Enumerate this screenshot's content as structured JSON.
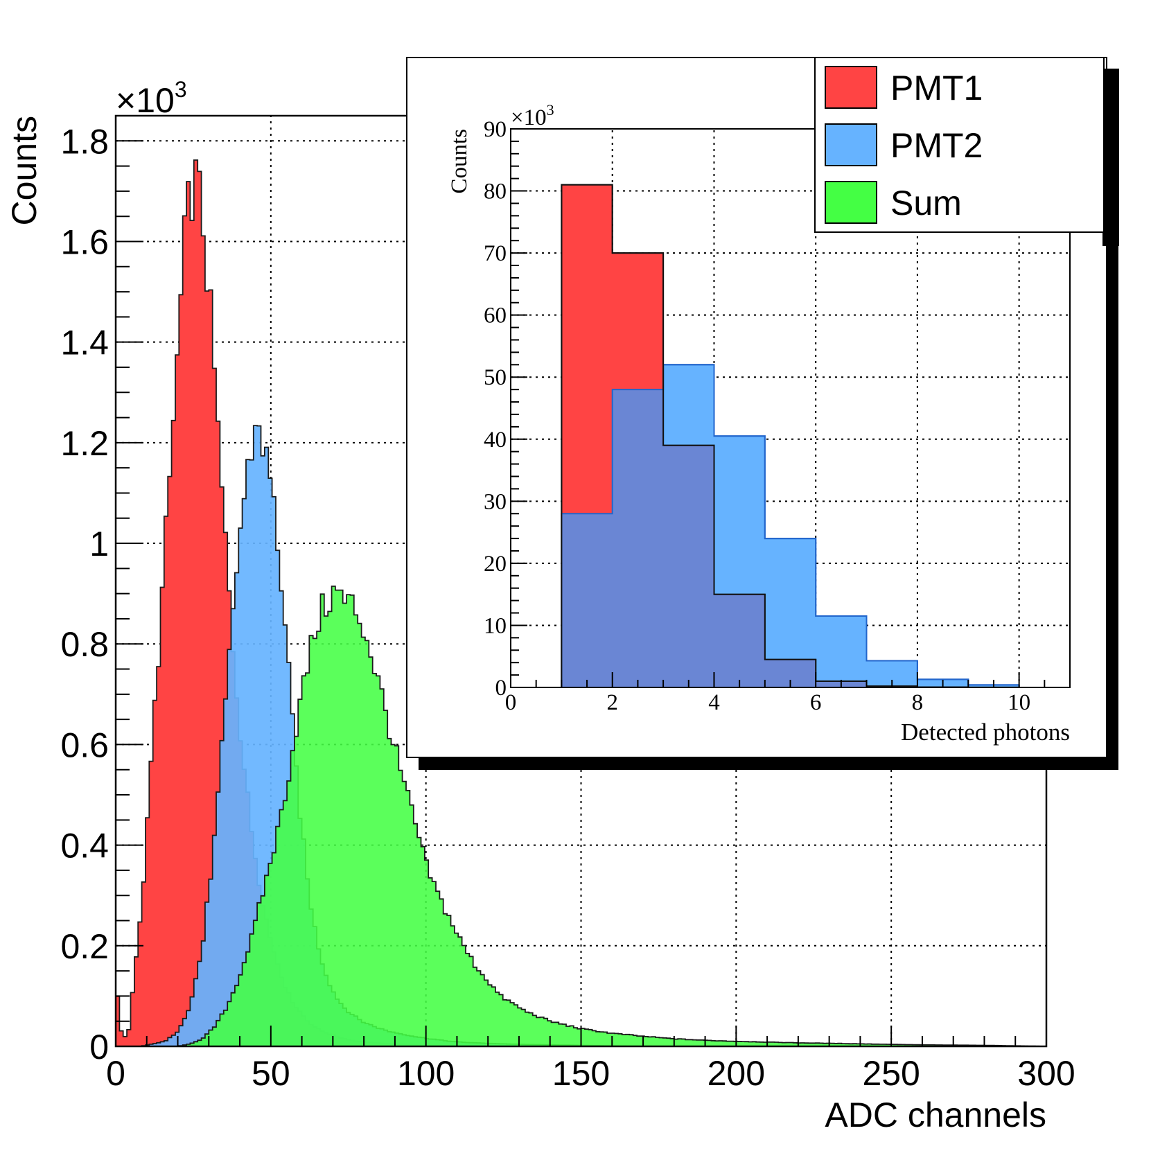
{
  "colors": {
    "pmt1": "#ff4444",
    "pmt2": "#66b3ff",
    "overlap": "#6a86d4",
    "sum": "#44ff44",
    "sum_overlap": "#1de63a"
  },
  "chart_data": [
    {
      "type": "histogram",
      "name": "main",
      "xlabel": "ADC channels",
      "ylabel": "Counts",
      "y_multiplier": "×10",
      "y_multiplier_exp": "3",
      "xlim": [
        0,
        300
      ],
      "ylim": [
        0,
        1.85
      ],
      "xticks": [
        "0",
        "50",
        "100",
        "150",
        "200",
        "250",
        "300"
      ],
      "yticks": [
        "0",
        "0.2",
        "0.4",
        "0.6",
        "0.8",
        "1",
        "1.2",
        "1.4",
        "1.6",
        "1.8"
      ],
      "grid": true,
      "series": [
        {
          "name": "PMT1",
          "color": "#ff4444",
          "x": [
            0,
            2,
            4,
            6,
            8,
            10,
            12,
            14,
            16,
            18,
            20,
            22,
            24,
            26,
            28,
            30,
            32,
            34,
            36,
            38,
            40,
            42,
            44,
            46,
            48,
            50,
            52,
            54,
            56,
            58,
            60,
            62,
            64,
            66,
            68,
            70,
            72,
            74,
            76,
            78,
            80,
            84,
            88,
            92,
            96,
            100,
            104,
            108,
            112,
            116,
            120,
            130,
            140,
            150
          ],
          "values": [
            0.13,
            0.02,
            0.02,
            0.15,
            0.25,
            0.42,
            0.62,
            0.8,
            1.0,
            1.18,
            1.38,
            1.58,
            1.7,
            1.72,
            1.65,
            1.5,
            1.32,
            1.12,
            0.95,
            0.78,
            0.64,
            0.52,
            0.42,
            0.34,
            0.27,
            0.21,
            0.17,
            0.13,
            0.1,
            0.08,
            0.065,
            0.05,
            0.04,
            0.032,
            0.027,
            0.022,
            0.018,
            0.015,
            0.012,
            0.01,
            0.009,
            0.007,
            0.005,
            0.004,
            0.003,
            0.002,
            0.002,
            0.001,
            0.001,
            0.001,
            0.0,
            0.0,
            0.0,
            0.0
          ]
        },
        {
          "name": "PMT2",
          "color": "#66b3ff",
          "x": [
            0,
            8,
            12,
            16,
            20,
            24,
            28,
            32,
            36,
            38,
            40,
            42,
            44,
            46,
            48,
            50,
            52,
            54,
            56,
            58,
            60,
            62,
            64,
            66,
            68,
            70,
            72,
            74,
            76,
            78,
            80,
            84,
            88,
            92,
            96,
            100,
            104,
            108,
            112,
            120,
            130,
            140,
            150,
            160,
            180
          ],
          "values": [
            0.0,
            0.0,
            0.005,
            0.01,
            0.03,
            0.08,
            0.2,
            0.42,
            0.72,
            0.88,
            1.02,
            1.12,
            1.2,
            1.25,
            1.18,
            1.12,
            1.02,
            0.88,
            0.72,
            0.56,
            0.43,
            0.32,
            0.24,
            0.18,
            0.14,
            0.11,
            0.09,
            0.075,
            0.065,
            0.055,
            0.048,
            0.038,
            0.03,
            0.025,
            0.02,
            0.016,
            0.013,
            0.01,
            0.008,
            0.006,
            0.004,
            0.003,
            0.002,
            0.001,
            0.0
          ]
        },
        {
          "name": "Sum",
          "color": "#44ff44",
          "x": [
            0,
            20,
            24,
            28,
            32,
            36,
            40,
            44,
            48,
            52,
            56,
            58,
            60,
            62,
            64,
            66,
            68,
            70,
            72,
            74,
            76,
            78,
            80,
            82,
            84,
            86,
            88,
            90,
            92,
            94,
            96,
            98,
            100,
            104,
            108,
            112,
            116,
            120,
            124,
            128,
            132,
            136,
            140,
            150,
            160,
            170,
            180,
            190,
            200,
            220,
            240,
            260,
            280,
            300
          ],
          "values": [
            0.0,
            0.0,
            0.005,
            0.015,
            0.04,
            0.08,
            0.14,
            0.22,
            0.32,
            0.42,
            0.55,
            0.63,
            0.7,
            0.76,
            0.82,
            0.86,
            0.88,
            0.9,
            0.9,
            0.88,
            0.88,
            0.86,
            0.83,
            0.79,
            0.74,
            0.69,
            0.64,
            0.59,
            0.54,
            0.5,
            0.45,
            0.41,
            0.36,
            0.3,
            0.25,
            0.2,
            0.16,
            0.13,
            0.1,
            0.085,
            0.07,
            0.06,
            0.05,
            0.035,
            0.026,
            0.02,
            0.015,
            0.012,
            0.01,
            0.007,
            0.005,
            0.003,
            0.002,
            0.0
          ]
        }
      ]
    },
    {
      "type": "histogram",
      "name": "inset",
      "xlabel": "Detected photons",
      "ylabel": "Counts",
      "y_multiplier": "×10",
      "y_multiplier_exp": "3",
      "xlim": [
        0,
        11
      ],
      "ylim": [
        0,
        90
      ],
      "xticks": [
        "0",
        "2",
        "4",
        "6",
        "8",
        "10"
      ],
      "yticks": [
        "0",
        "10",
        "20",
        "30",
        "40",
        "50",
        "60",
        "70",
        "80",
        "90"
      ],
      "grid": true,
      "bin_edges": [
        1,
        2,
        3,
        4,
        5,
        6,
        7,
        8,
        9,
        10
      ],
      "series": [
        {
          "name": "PMT1",
          "color": "#ff4444",
          "values": [
            81,
            70,
            39,
            15,
            4.5,
            1,
            0.2,
            0.05,
            0.01
          ]
        },
        {
          "name": "PMT2",
          "color": "#66b3ff",
          "values": [
            28,
            48,
            52,
            40.5,
            24,
            11.5,
            4.3,
            1.3,
            0.4
          ]
        }
      ]
    }
  ],
  "legend": {
    "entries": [
      {
        "label": "PMT1",
        "color": "#ff4444"
      },
      {
        "label": "PMT2",
        "color": "#66b3ff"
      },
      {
        "label": "Sum",
        "color": "#44ff44"
      }
    ]
  }
}
